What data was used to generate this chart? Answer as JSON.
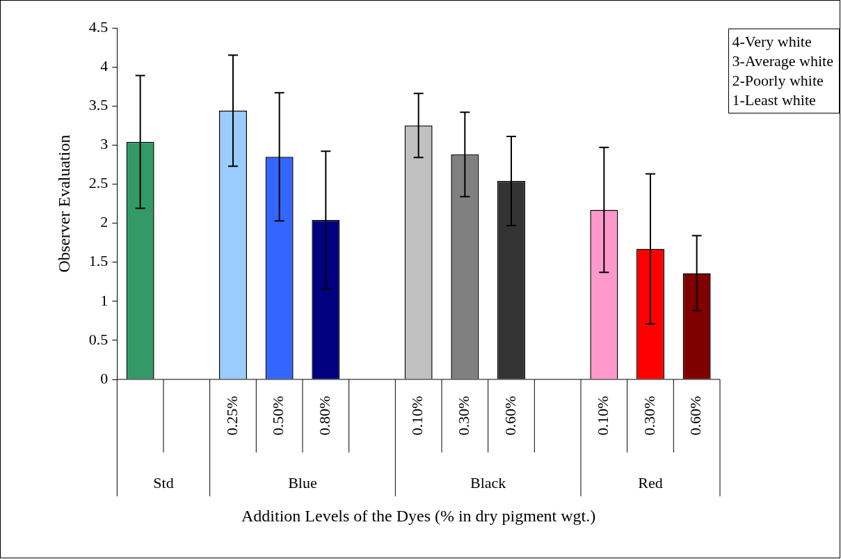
{
  "chart_data": {
    "type": "bar",
    "xlabel": "Addition Levels of the Dyes (% in dry pigment wgt.)",
    "ylabel": "Observer Evaluation",
    "categories": [
      null,
      null,
      "0.25%",
      "0.50%",
      "0.80%",
      null,
      "0.10%",
      "0.30%",
      "0.60%",
      null,
      "0.10%",
      "0.30%",
      "0.60%"
    ],
    "values": [
      3.04,
      null,
      3.44,
      2.85,
      2.04,
      null,
      3.25,
      2.88,
      2.54,
      null,
      2.17,
      1.67,
      1.36
    ],
    "errors": [
      0.85,
      null,
      0.71,
      0.82,
      0.88,
      null,
      0.41,
      0.54,
      0.57,
      null,
      0.8,
      0.96,
      0.48
    ],
    "colors": [
      "#339966",
      "#ffffff",
      "#99ccff",
      "#3366ff",
      "#000080",
      "#ffffff",
      "#c0c0c0",
      "#808080",
      "#333333",
      "#ffffff",
      "#ff99cc",
      "#ff0000",
      "#800000"
    ],
    "ylim": [
      0,
      4.5
    ],
    "yticks": [
      0,
      0.5,
      1,
      1.5,
      2,
      2.5,
      3,
      3.5,
      4,
      4.5
    ],
    "grid": false,
    "legend": false,
    "annotations": [
      "Std",
      "Blue",
      "Black",
      "Red",
      "4-Very white",
      "3-Average white",
      "2-Poorly white",
      "1-Least white"
    ]
  }
}
